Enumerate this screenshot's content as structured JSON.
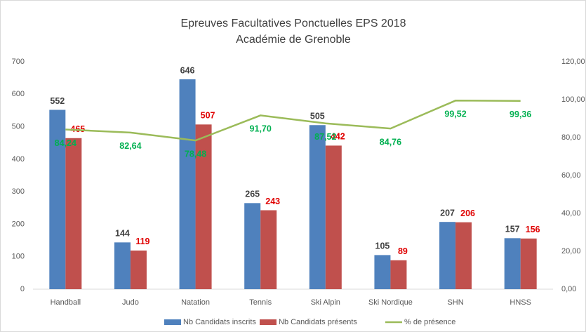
{
  "chart_data": {
    "type": "bar_line",
    "title": "Epreuves Facultatives Ponctuelles EPS 2018",
    "subtitle": "Académie de Grenoble",
    "categories": [
      "Handball",
      "Judo",
      "Natation",
      "Tennis",
      "Ski Alpin",
      "Ski Nordique",
      "SHN",
      "HNSS"
    ],
    "series": [
      {
        "name": "Nb Candidats inscrits",
        "color": "#4f81bd",
        "label_color": "#404040",
        "values": [
          552,
          144,
          646,
          265,
          505,
          105,
          207,
          157
        ]
      },
      {
        "name": "Nb Candidats présents",
        "color": "#c0504d",
        "label_color": "#e00000",
        "values": [
          465,
          119,
          507,
          243,
          442,
          89,
          206,
          156
        ]
      },
      {
        "name": "% de présence",
        "color": "#9bbb59",
        "label_color": "#00b050",
        "axis": "y2",
        "values": [
          84.24,
          82.64,
          78.48,
          91.7,
          87.52,
          84.76,
          99.52,
          99.36
        ],
        "value_labels": [
          "84,24",
          "82,64",
          "78,48",
          "91,70",
          "87,52",
          "84,76",
          "99,52",
          "99,36"
        ]
      }
    ],
    "ylim": [
      0,
      700
    ],
    "yticks": [
      0,
      100,
      200,
      300,
      400,
      500,
      600,
      700
    ],
    "y2lim": [
      0,
      120
    ],
    "y2ticks": [
      {
        "value": 0,
        "label": "0,00"
      },
      {
        "value": 20,
        "label": "20,00"
      },
      {
        "value": 40,
        "label": "40,00"
      },
      {
        "value": 60,
        "label": "60,00"
      },
      {
        "value": 80,
        "label": "80,00"
      },
      {
        "value": 100,
        "label": "100,00"
      },
      {
        "value": 120,
        "label": "120,00"
      }
    ],
    "grid": false,
    "legend": "bottom"
  }
}
